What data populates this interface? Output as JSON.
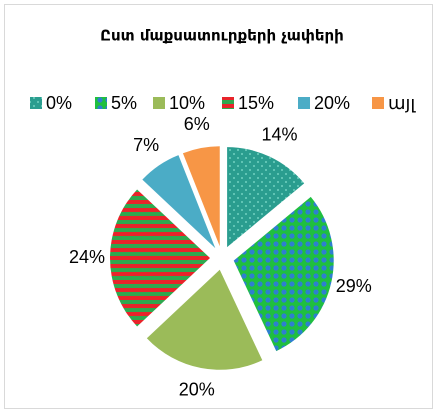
{
  "chart_data": {
    "type": "pie",
    "title": "Ըստ մաքսատուրքերի չափերի",
    "categories": [
      "0%",
      "5%",
      "10%",
      "15%",
      "20%",
      "այլ"
    ],
    "values": [
      14,
      29,
      20,
      24,
      7,
      6
    ],
    "value_labels": [
      "14%",
      "29%",
      "20%",
      "24%",
      "7%",
      "6%"
    ],
    "colors": [
      "#2a9d8f",
      "#1fbf3f",
      "#9bbb59",
      "#e8242a",
      "#4bacc6",
      "#f79646"
    ],
    "patterns": [
      "dots",
      "checker",
      "solid",
      "stripes",
      "solid",
      "solid"
    ],
    "pattern_colors": [
      "#6fd0c0",
      "#2e7fd0",
      null,
      "#2fa84f",
      null,
      null
    ]
  }
}
